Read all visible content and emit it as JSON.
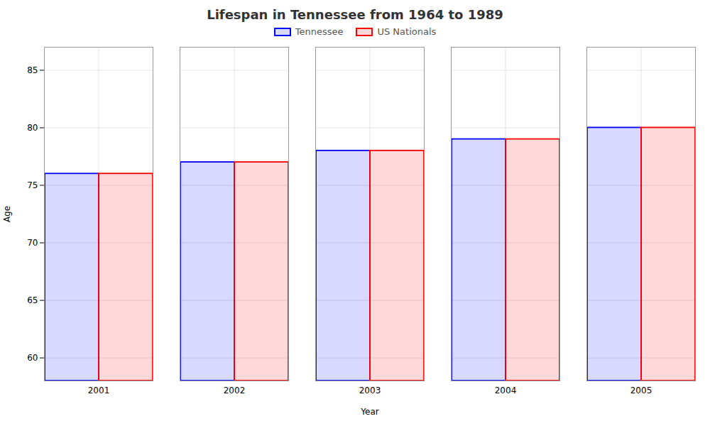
{
  "chart_data": {
    "type": "bar",
    "title": "Lifespan in Tennessee from 1964 to 1989",
    "xlabel": "Year",
    "ylabel": "Age",
    "categories": [
      "2001",
      "2002",
      "2003",
      "2004",
      "2005"
    ],
    "series": [
      {
        "name": "Tennessee",
        "color": "#0000ff",
        "values": [
          76,
          77,
          78,
          79,
          80
        ]
      },
      {
        "name": "US Nationals",
        "color": "#ff0000",
        "values": [
          76,
          77,
          78,
          79,
          80
        ]
      }
    ],
    "ylim": [
      58,
      87
    ],
    "yticks": [
      60,
      65,
      70,
      75,
      80,
      85
    ],
    "grid": true,
    "legend": "top"
  }
}
